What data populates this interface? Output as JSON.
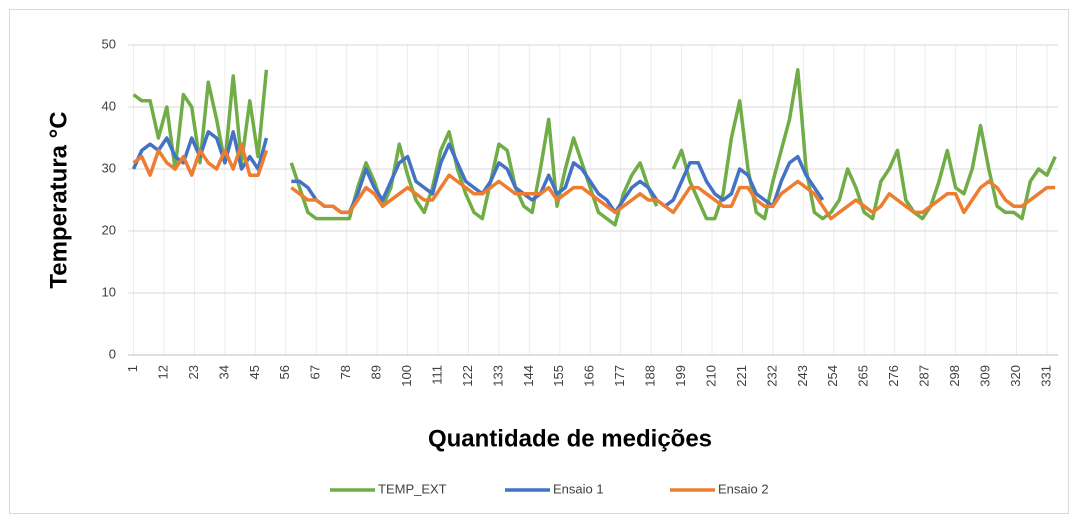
{
  "chart_data": {
    "type": "line",
    "x_label": "Quantidade de medições",
    "y_label": "Temperatura °C",
    "x": [
      1,
      4,
      7,
      10,
      13,
      16,
      19,
      22,
      25,
      28,
      31,
      34,
      37,
      40,
      43,
      46,
      49,
      52,
      55,
      58,
      61,
      64,
      67,
      70,
      73,
      76,
      79,
      82,
      85,
      88,
      91,
      94,
      97,
      100,
      103,
      106,
      109,
      112,
      115,
      118,
      121,
      124,
      127,
      130,
      133,
      136,
      139,
      142,
      145,
      148,
      151,
      154,
      157,
      160,
      163,
      166,
      169,
      172,
      175,
      178,
      181,
      184,
      187,
      190,
      193,
      196,
      199,
      202,
      205,
      208,
      211,
      214,
      217,
      220,
      223,
      226,
      229,
      232,
      235,
      238,
      241,
      244,
      247,
      250,
      253,
      256,
      259,
      262,
      265,
      268,
      271,
      274,
      277,
      280,
      283,
      286,
      289,
      292,
      295,
      298,
      301,
      304,
      307,
      310,
      313,
      316,
      319,
      322,
      325,
      328,
      331,
      334
    ],
    "series": [
      {
        "name": "TEMP_EXT",
        "color": "#70ad47",
        "values": [
          42,
          41,
          41,
          35,
          40,
          30,
          42,
          40,
          31,
          44,
          38,
          31,
          45,
          31,
          41,
          32,
          46,
          null,
          null,
          31,
          27,
          23,
          22,
          22,
          22,
          22,
          22,
          27,
          31,
          28,
          24,
          27,
          34,
          29,
          25,
          23,
          27,
          33,
          36,
          30,
          26,
          23,
          22,
          28,
          34,
          33,
          27,
          24,
          23,
          30,
          38,
          24,
          30,
          35,
          31,
          27,
          23,
          22,
          21,
          26,
          29,
          31,
          27,
          24,
          null,
          30,
          33,
          28,
          25,
          22,
          22,
          26,
          35,
          41,
          30,
          23,
          22,
          28,
          33,
          38,
          46,
          30,
          23,
          22,
          23,
          25,
          30,
          27,
          23,
          22,
          28,
          30,
          33,
          25,
          23,
          22,
          24,
          28,
          33,
          27,
          26,
          30,
          37,
          30,
          24,
          23,
          23,
          22,
          28,
          30,
          29,
          32
        ]
      },
      {
        "name": "Ensaio 1",
        "color": "#4472c4",
        "values": [
          30,
          33,
          34,
          33,
          35,
          32,
          31,
          35,
          32,
          36,
          35,
          31,
          36,
          30,
          32,
          30,
          35,
          null,
          null,
          28,
          28,
          27,
          25,
          24,
          24,
          23,
          23,
          26,
          30,
          27,
          25,
          28,
          31,
          32,
          28,
          27,
          26,
          31,
          34,
          31,
          28,
          27,
          26,
          28,
          31,
          30,
          27,
          26,
          25,
          26,
          29,
          26,
          27,
          31,
          30,
          28,
          26,
          25,
          23,
          25,
          27,
          28,
          27,
          25,
          24,
          25,
          28,
          31,
          31,
          28,
          26,
          25,
          26,
          30,
          29,
          26,
          25,
          24,
          28,
          31,
          32,
          29,
          27,
          25,
          null,
          null,
          null,
          null,
          null,
          null,
          null,
          null,
          null,
          null,
          null,
          null,
          null,
          null,
          null,
          null,
          null,
          null,
          null,
          null,
          null,
          null,
          null,
          null,
          null,
          null,
          null,
          null
        ]
      },
      {
        "name": "Ensaio 2",
        "color": "#ed7d31",
        "values": [
          31,
          32,
          29,
          33,
          31,
          30,
          32,
          29,
          33,
          31,
          30,
          33,
          30,
          34,
          29,
          29,
          33,
          null,
          null,
          27,
          26,
          25,
          25,
          24,
          24,
          23,
          23,
          25,
          27,
          26,
          24,
          25,
          26,
          27,
          26,
          25,
          25,
          27,
          29,
          28,
          27,
          26,
          26,
          27,
          28,
          27,
          26,
          26,
          26,
          26,
          27,
          25,
          26,
          27,
          27,
          26,
          25,
          24,
          23,
          24,
          25,
          26,
          25,
          25,
          24,
          23,
          25,
          27,
          27,
          26,
          25,
          24,
          24,
          27,
          27,
          25,
          24,
          24,
          26,
          27,
          28,
          27,
          26,
          24,
          22,
          23,
          24,
          25,
          24,
          23,
          24,
          26,
          25,
          24,
          23,
          23,
          24,
          25,
          26,
          26,
          23,
          25,
          27,
          28,
          27,
          25,
          24,
          24,
          25,
          26,
          27,
          27
        ]
      }
    ],
    "xlim": [
      -1,
      335
    ],
    "xticks": [
      1,
      12,
      23,
      34,
      45,
      56,
      67,
      78,
      89,
      100,
      111,
      122,
      133,
      144,
      155,
      166,
      177,
      188,
      199,
      210,
      221,
      232,
      243,
      254,
      265,
      276,
      287,
      298,
      309,
      320,
      331
    ],
    "ylim": [
      0,
      50
    ],
    "yticks": [
      0,
      10,
      20,
      30,
      40,
      50
    ],
    "grid": true,
    "legend": "bottom"
  }
}
